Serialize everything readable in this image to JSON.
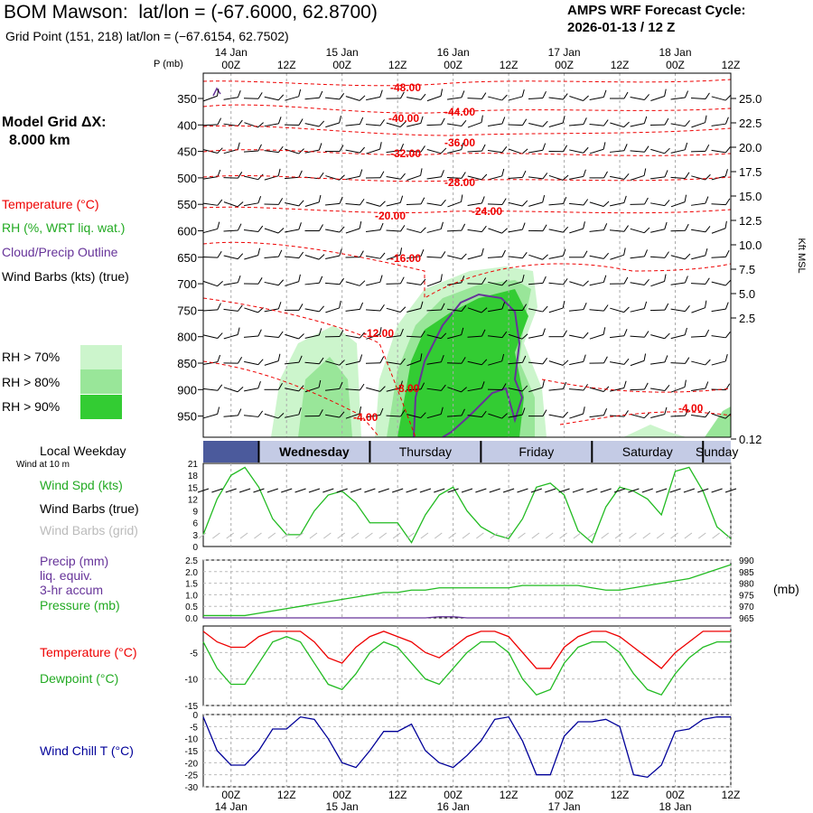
{
  "header": {
    "station": "BOM Mawson:",
    "latlon": "lat/lon = (-67.6000, 62.8700)",
    "grid_point": "Grid Point (151, 218) lat/lon = (−67.6154, 62.7502)",
    "cycle_line1": "AMPS WRF Forecast Cycle:",
    "cycle_line2": "2026-01-13 / 12  Z"
  },
  "model": {
    "line1": "Model Grid ΔX:",
    "line2": "8.000 km"
  },
  "legend": {
    "temperature": "Temperature (°C)",
    "rh": "RH (%, WRT liq. wat.)",
    "cloud": "Cloud/Precip Outline",
    "wind": "Wind Barbs (kts) (true)",
    "rh70": "RH > 70%",
    "rh80": "RH > 80%",
    "rh90": "RH > 90%",
    "colors": {
      "temp": "#ee0000",
      "rh70": "#ccf5cc",
      "rh80": "#99e699",
      "rh90": "#33cc33",
      "cloud": "#663399",
      "dew": "#22bb22",
      "chill": "#000099"
    }
  },
  "axes": {
    "p_label": "P (mb)",
    "kft_label": "Kft MSL",
    "top_time_ticks": [
      "00Z",
      "12Z",
      "00Z",
      "12Z",
      "00Z",
      "12Z",
      "00Z",
      "12Z",
      "00Z",
      "12Z"
    ],
    "top_day_labels": [
      "14 Jan",
      "15 Jan",
      "16 Jan",
      "17 Jan",
      "18 Jan"
    ],
    "pressure_levels": [
      "350",
      "400",
      "450",
      "500",
      "550",
      "600",
      "650",
      "700",
      "750",
      "800",
      "850",
      "900",
      "950"
    ],
    "kft_levels": [
      "25.0",
      "22.5",
      "20.0",
      "17.5",
      "15.0",
      "12.5",
      "10.0",
      "7.5",
      "5.0",
      "2.5",
      "0.12"
    ],
    "bottom_time_ticks": [
      "00Z",
      "12Z",
      "00Z",
      "12Z",
      "00Z",
      "12Z",
      "00Z",
      "12Z",
      "00Z",
      "12Z"
    ],
    "bottom_day_labels": [
      "14 Jan",
      "15 Jan",
      "16 Jan",
      "17 Jan",
      "18 Jan"
    ]
  },
  "weekday": {
    "label": "Local Weekday",
    "wind_note": "Wind at 10 m",
    "days": [
      "Wednesday",
      "Thursday",
      "Friday",
      "Saturday",
      "Sunday"
    ]
  },
  "panels": {
    "wind": {
      "spd_label": "Wind Spd (kts)",
      "barbs_true": "Wind Barbs (true)",
      "barbs_grid": "Wind Barbs (grid)",
      "yticks": [
        "21",
        "18",
        "15",
        "12",
        "9",
        "6",
        "3",
        "0"
      ]
    },
    "precip": {
      "precip_label": "Precip (mm)",
      "liq": "liq. equiv.",
      "accum": "3-hr accum",
      "pressure_label": "Pressure (mb)",
      "mb_unit": "(mb)",
      "left_ticks": [
        "2.5",
        "2.0",
        "1.5",
        "1.0",
        "0.5",
        "0.0"
      ],
      "right_ticks": [
        "990",
        "985",
        "980",
        "975",
        "970",
        "965"
      ]
    },
    "temp": {
      "temp_label": "Temperature (°C)",
      "dew_label": "Dewpoint (°C)",
      "yticks": [
        "-5",
        "-10",
        "-15"
      ]
    },
    "chill": {
      "label": "Wind Chill T (°C)",
      "yticks": [
        "0",
        "-5",
        "-10",
        "-15",
        "-20",
        "-25",
        "-30"
      ]
    }
  },
  "chart_data": {
    "type": "line",
    "time_hours_from_14Jan00Z": [
      -6,
      -3,
      0,
      3,
      6,
      9,
      12,
      15,
      18,
      21,
      24,
      27,
      30,
      33,
      36,
      39,
      42,
      45,
      48,
      51,
      54,
      57,
      60,
      63,
      66,
      69,
      72,
      75,
      78,
      81,
      84,
      87,
      90,
      93,
      96,
      99,
      102,
      105,
      108
    ],
    "series": [
      {
        "name": "Wind Spd (kts)",
        "values": [
          3,
          12,
          18,
          20,
          15,
          7,
          3,
          3,
          9,
          13,
          14,
          11,
          6,
          6,
          6,
          1,
          8,
          13,
          15,
          9,
          5,
          3,
          2,
          7,
          15,
          16,
          13,
          4,
          1,
          10,
          15,
          14,
          12,
          8,
          19,
          20,
          14,
          5,
          2
        ]
      },
      {
        "name": "Pressure (mb)",
        "values": [
          966,
          966,
          966,
          966,
          967,
          968,
          969,
          970,
          971,
          972,
          973,
          974,
          975,
          976,
          976,
          977,
          977,
          978,
          978,
          978,
          978,
          978,
          978,
          979,
          979,
          979,
          979,
          979,
          978,
          977,
          977,
          978,
          979,
          980,
          981,
          982,
          984,
          986,
          988
        ]
      },
      {
        "name": "Precip (mm)",
        "values": [
          0,
          0,
          0,
          0,
          0,
          0,
          0,
          0,
          0,
          0,
          0,
          0,
          0,
          0,
          0,
          0,
          0,
          0.05,
          0.05,
          0,
          0,
          0,
          0,
          0,
          0,
          0,
          0,
          0,
          0,
          0,
          0,
          0,
          0,
          0,
          0,
          0,
          0,
          0,
          0
        ]
      },
      {
        "name": "Temperature (°C)",
        "values": [
          -1,
          -3,
          -4,
          -4,
          -2,
          -1,
          -1,
          -1,
          -3,
          -6,
          -7,
          -4,
          -2,
          -1,
          -2,
          -3,
          -5,
          -6,
          -4,
          -2,
          -1,
          -1,
          -2,
          -5,
          -8,
          -8,
          -4,
          -2,
          -1,
          -1,
          -2,
          -4,
          -6,
          -8,
          -5,
          -3,
          -1,
          -1,
          -1
        ]
      },
      {
        "name": "Dewpoint (°C)",
        "values": [
          -3,
          -8,
          -11,
          -11,
          -7,
          -3,
          -2,
          -3,
          -7,
          -11,
          -12,
          -9,
          -5,
          -3,
          -4,
          -7,
          -10,
          -11,
          -8,
          -5,
          -3,
          -3,
          -5,
          -10,
          -13,
          -12,
          -7,
          -4,
          -3,
          -3,
          -5,
          -9,
          -12,
          -13,
          -9,
          -6,
          -4,
          -3,
          -3
        ]
      },
      {
        "name": "Wind Chill T (°C)",
        "values": [
          -1,
          -15,
          -21,
          -21,
          -15,
          -6,
          -6,
          -1,
          -2,
          -10,
          -20,
          -22,
          -15,
          -7,
          -7,
          -4,
          -15,
          -20,
          -22,
          -17,
          -11,
          -2,
          -1,
          -11,
          -25,
          -25,
          -9,
          -3,
          -3,
          -2,
          -5,
          -25,
          -26,
          -21,
          -7,
          -6,
          -2,
          -1,
          -1
        ]
      }
    ],
    "temperature_contour_labels": [
      "-48.00",
      "-44.00",
      "-40.00",
      "-36.00",
      "-32.00",
      "-28.00",
      "-24.00",
      "-20.00",
      "-16.00",
      "-12.00",
      "-8.00",
      "-4.00",
      "-4.00"
    ]
  }
}
